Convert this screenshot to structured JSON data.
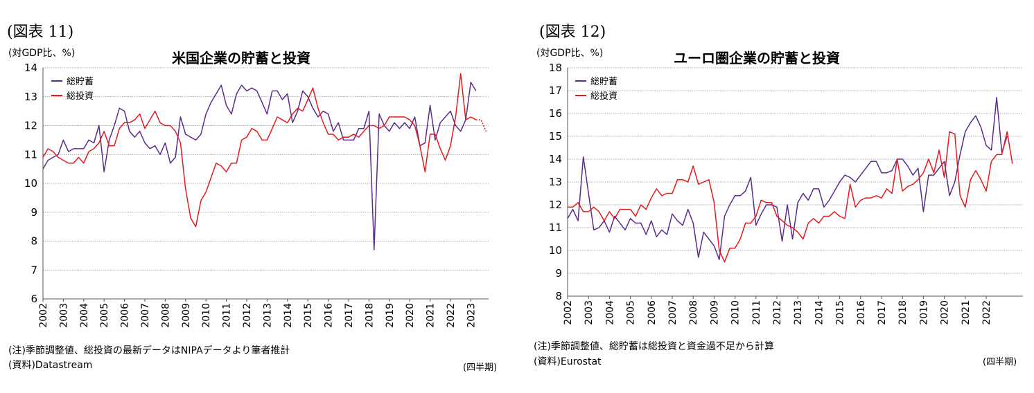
{
  "left": {
    "fig_label": "(図表 11)",
    "unit": "(対GDP比、%)",
    "note": "(注)季節調整値、総投資の最新データはNIPAデータより筆者推計",
    "source": "(資料)Datastream",
    "period": "(四半期)"
  },
  "right": {
    "fig_label": "(図表 12)",
    "unit": "(対GDP比、%)",
    "note": "(注)季節調整値、総貯蓄は総投資と資金過不足から計算",
    "source": "(資料)Eurostat",
    "period": "(四半期)"
  },
  "chart_data": [
    {
      "type": "line",
      "title": "米国企業の貯蓄と投資",
      "ylabel": "(対GDP比、%)",
      "xlabel": "(四半期)",
      "ylim": [
        6,
        14
      ],
      "yticks": [
        "6",
        "7",
        "8",
        "9",
        "10",
        "11",
        "12",
        "13",
        "14"
      ],
      "xticks": [
        "2002",
        "2003",
        "2004",
        "2005",
        "2006",
        "2007",
        "2008",
        "2009",
        "2010",
        "2011",
        "2012",
        "2013",
        "2014",
        "2015",
        "2016",
        "2017",
        "2018",
        "2019",
        "2020",
        "2021",
        "2022",
        "2023"
      ],
      "x_start": "2002 Q1",
      "grid": true,
      "legend_position": "top-left",
      "series": [
        {
          "name": "総貯蓄",
          "color": "#5b2b8c",
          "values": [
            10.5,
            10.8,
            10.9,
            11.0,
            11.5,
            11.1,
            11.2,
            11.2,
            11.2,
            11.5,
            11.4,
            12.0,
            10.4,
            11.5,
            12.0,
            12.6,
            12.5,
            11.8,
            11.6,
            11.8,
            11.4,
            11.2,
            11.3,
            11.0,
            11.4,
            10.7,
            10.9,
            12.3,
            11.7,
            11.6,
            11.5,
            11.7,
            12.4,
            12.8,
            13.1,
            13.4,
            12.7,
            12.4,
            13.1,
            13.4,
            13.2,
            13.3,
            13.2,
            12.8,
            12.4,
            13.2,
            13.2,
            12.9,
            13.1,
            12.1,
            12.5,
            13.2,
            13.0,
            12.6,
            12.3,
            12.5,
            12.4,
            11.8,
            12.1,
            11.5,
            11.5,
            11.5,
            11.9,
            11.9,
            12.5,
            7.7,
            12.4,
            12.0,
            11.8,
            12.1,
            11.9,
            12.1,
            11.9,
            12.3,
            11.3,
            11.4,
            12.7,
            11.5,
            12.1,
            12.3,
            12.5,
            12.0,
            11.8,
            12.2,
            13.5,
            13.2
          ]
        },
        {
          "name": "総投資",
          "color": "#e8191b",
          "values": [
            10.9,
            11.2,
            11.1,
            10.9,
            10.8,
            10.7,
            10.7,
            10.9,
            10.7,
            11.1,
            11.2,
            11.4,
            11.8,
            11.3,
            11.3,
            11.9,
            12.1,
            12.1,
            12.2,
            12.4,
            11.9,
            12.2,
            12.5,
            12.1,
            12.0,
            12.0,
            11.8,
            11.4,
            9.8,
            8.8,
            8.5,
            9.4,
            9.7,
            10.2,
            10.7,
            10.6,
            10.4,
            10.7,
            10.7,
            11.5,
            11.6,
            11.9,
            11.8,
            11.5,
            11.5,
            11.9,
            12.3,
            12.2,
            12.1,
            12.4,
            12.6,
            12.5,
            12.9,
            13.3,
            12.6,
            12.1,
            11.7,
            11.7,
            11.5,
            11.6,
            11.6,
            11.7,
            11.6,
            11.8,
            12.0,
            12.0,
            11.9,
            12.0,
            12.3,
            12.3,
            12.3,
            12.3,
            12.2,
            12.0,
            11.3,
            10.4,
            11.7,
            11.7,
            11.2,
            10.8,
            11.3,
            12.3,
            13.8,
            12.2,
            12.3,
            12.2
          ]
        }
      ],
      "estimate_tail": [
        12.2,
        11.8
      ]
    },
    {
      "type": "line",
      "title": "ユーロ圏企業の貯蓄と投資",
      "ylabel": "(対GDP比、%)",
      "xlabel": "(四半期)",
      "ylim": [
        8,
        18
      ],
      "yticks": [
        "8",
        "9",
        "10",
        "11",
        "12",
        "13",
        "14",
        "15",
        "16",
        "17",
        "18"
      ],
      "xticks": [
        "2002",
        "2003",
        "2004",
        "2005",
        "2006",
        "2007",
        "2008",
        "2009",
        "2010",
        "2011",
        "2012",
        "2013",
        "2014",
        "2015",
        "2016",
        "2017",
        "2018",
        "2019",
        "2020",
        "2021",
        "2022"
      ],
      "x_start": "2002 Q1",
      "grid": true,
      "legend_position": "top-left",
      "series": [
        {
          "name": "総貯蓄",
          "color": "#5b2b8c",
          "values": [
            11.4,
            11.8,
            11.3,
            14.1,
            12.5,
            10.9,
            11.0,
            11.3,
            10.8,
            11.5,
            11.2,
            10.9,
            11.4,
            11.2,
            11.2,
            10.7,
            11.3,
            10.6,
            10.9,
            10.7,
            11.6,
            11.3,
            11.1,
            11.8,
            11.2,
            9.7,
            10.8,
            10.5,
            10.2,
            9.6,
            11.5,
            12.0,
            12.4,
            12.4,
            12.6,
            13.2,
            11.1,
            11.6,
            12.0,
            12.0,
            11.9,
            10.4,
            12.0,
            10.5,
            12.1,
            12.5,
            12.2,
            12.7,
            12.7,
            11.9,
            12.2,
            12.6,
            13.0,
            13.3,
            13.2,
            13.0,
            13.3,
            13.6,
            13.9,
            13.9,
            13.4,
            13.4,
            13.5,
            14.0,
            14.0,
            13.7,
            13.3,
            13.6,
            11.7,
            13.3,
            13.3,
            13.6,
            13.9,
            12.4,
            13.0,
            14.2,
            15.2,
            15.6,
            15.9,
            15.4,
            14.6,
            14.4,
            16.7,
            14.3,
            15.0
          ]
        },
        {
          "name": "総投資",
          "color": "#e8191b",
          "values": [
            11.9,
            11.9,
            12.1,
            11.7,
            11.7,
            11.9,
            11.7,
            11.3,
            11.7,
            11.4,
            11.8,
            11.8,
            11.8,
            11.5,
            12.0,
            11.8,
            12.3,
            12.7,
            12.4,
            12.5,
            12.5,
            13.1,
            13.1,
            13.0,
            13.7,
            12.9,
            13.0,
            13.1,
            12.1,
            10.0,
            9.5,
            10.1,
            10.1,
            10.5,
            11.2,
            11.2,
            11.5,
            12.2,
            12.1,
            12.1,
            11.5,
            11.3,
            11.1,
            11.0,
            10.8,
            10.5,
            11.2,
            11.4,
            11.2,
            11.5,
            11.5,
            11.7,
            11.5,
            11.4,
            12.9,
            11.9,
            12.2,
            12.3,
            12.3,
            12.4,
            12.3,
            12.7,
            12.5,
            14.0,
            12.6,
            12.8,
            12.9,
            13.1,
            13.4,
            14.0,
            13.4,
            14.4,
            13.2,
            15.2,
            15.1,
            12.4,
            11.9,
            13.1,
            13.5,
            13.1,
            12.6,
            13.9,
            14.2,
            14.2,
            15.2,
            13.8
          ]
        }
      ]
    }
  ]
}
